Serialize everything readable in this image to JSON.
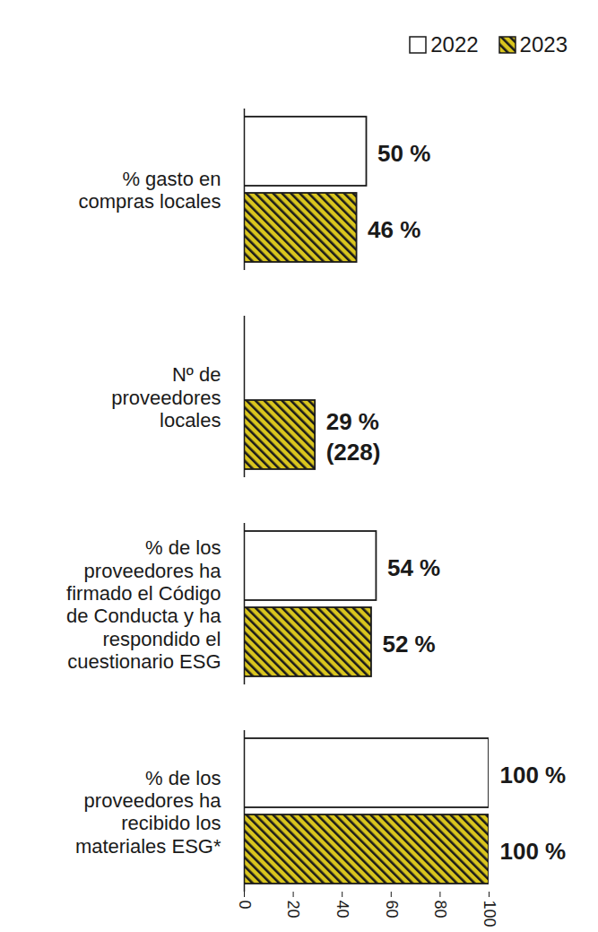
{
  "chart_data": {
    "type": "bar",
    "orientation": "horizontal",
    "categories": [
      "% gasto en\ncompras locales",
      "Nº de\nproveedores\nlocales",
      "% de los\nproveedores ha\nfirmado el Código\nde Conducta y ha\nrespondido el\ncuestionario ESG",
      "% de los\nproveedores ha\nrecibido los\nmateriales ESG*"
    ],
    "series": [
      {
        "name": "2022",
        "color": "#ffffff",
        "values": [
          50,
          null,
          54,
          100
        ],
        "value_labels": [
          "50 %",
          null,
          "54 %",
          "100 %"
        ]
      },
      {
        "name": "2023",
        "color": "#d9c51e",
        "marker": "hatch",
        "values": [
          46,
          29,
          52,
          100
        ],
        "value_labels": [
          "46 %",
          "29 %\n(228)",
          "52 %",
          "100 %"
        ]
      }
    ],
    "xlim": [
      0,
      100
    ],
    "xticks": [
      0,
      20,
      40,
      60,
      80,
      100
    ],
    "data_labels": true,
    "legend": "top-right"
  }
}
